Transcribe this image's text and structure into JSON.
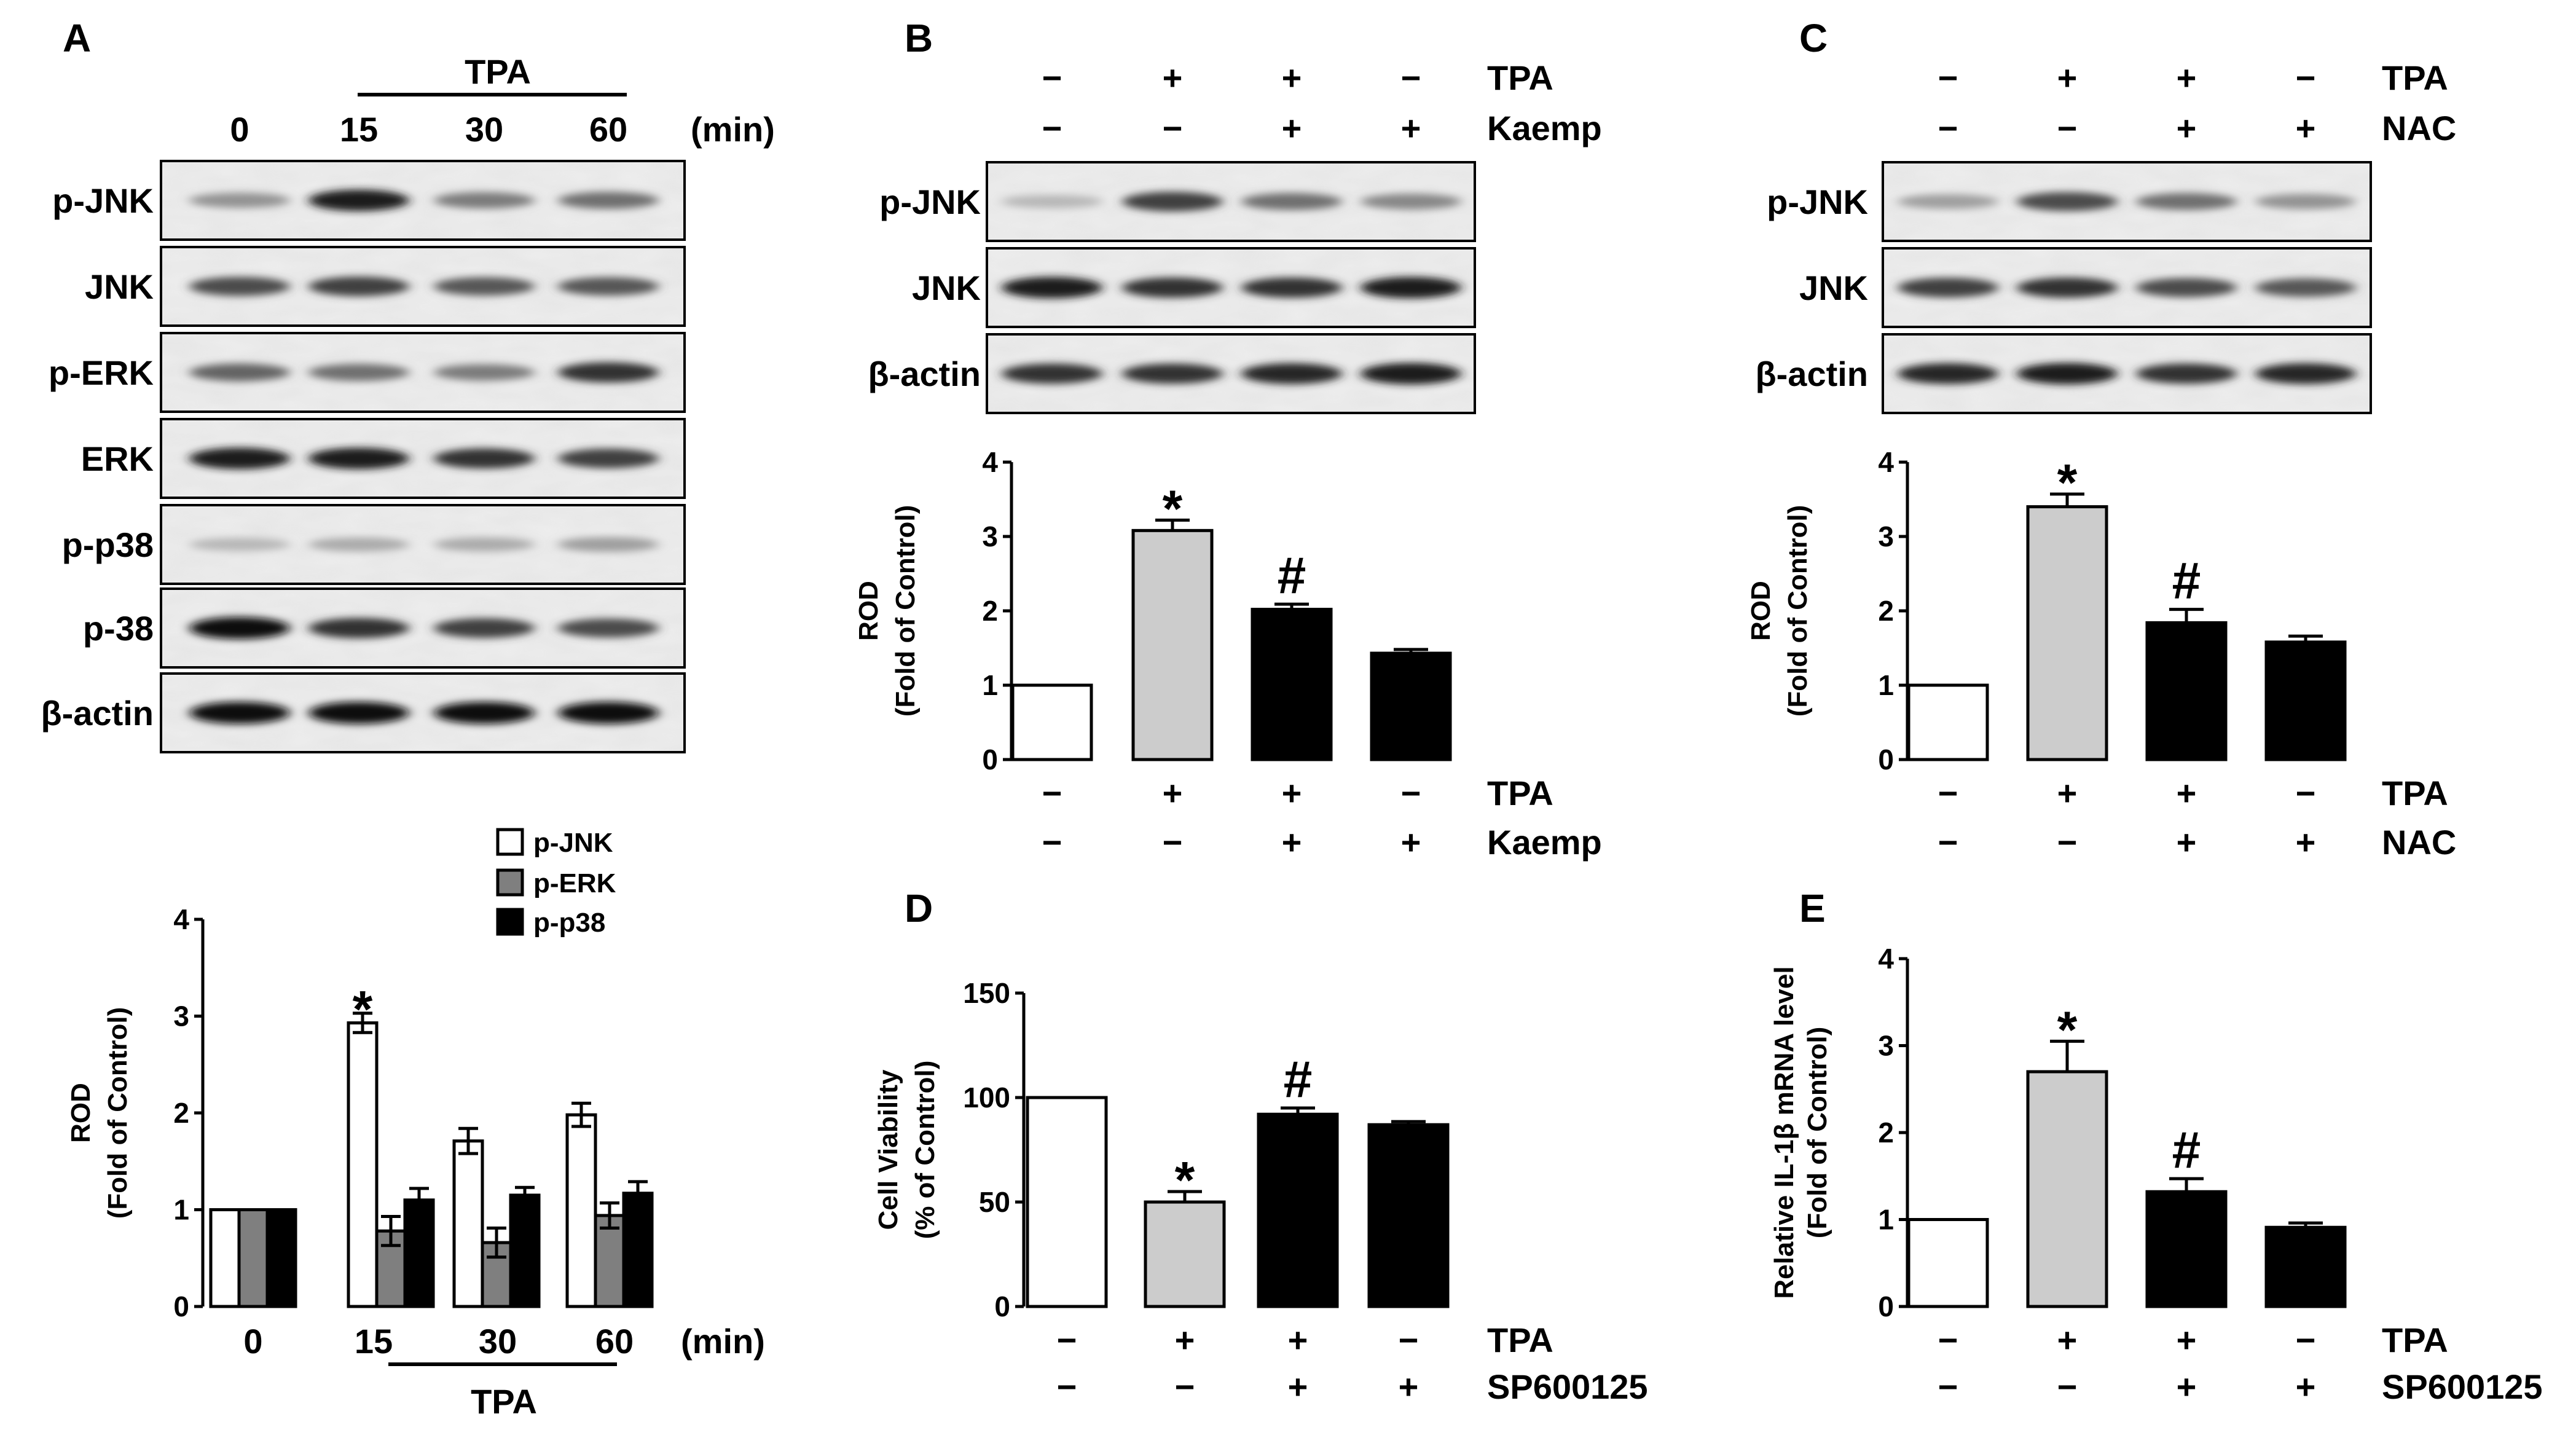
{
  "panel_labels": [
    "A",
    "B",
    "C",
    "D",
    "E"
  ],
  "colors": {
    "white": "#ffffff",
    "gray_light": "#cccccc",
    "gray_dark": "#7f7f7f",
    "black": "#000000"
  },
  "blots": {
    "A": {
      "group": "TPA",
      "times": [
        "0",
        "15",
        "30",
        "60"
      ],
      "unit": "(min)",
      "rows": [
        "p-JNK",
        "JNK",
        "p-ERK",
        "ERK",
        "p-p38",
        "p-38",
        "β-actin"
      ]
    },
    "B": {
      "rows": [
        "p-JNK",
        "JNK",
        "β-actin"
      ],
      "treatments": [
        {
          "name": "TPA",
          "signs": [
            "−",
            "+",
            "+",
            "−"
          ]
        },
        {
          "name": "Kaemp",
          "signs": [
            "−",
            "−",
            "+",
            "+"
          ]
        }
      ]
    },
    "C": {
      "rows": [
        "p-JNK",
        "JNK",
        "β-actin"
      ],
      "treatments": [
        {
          "name": "TPA",
          "signs": [
            "−",
            "+",
            "+",
            "−"
          ]
        },
        {
          "name": "NAC",
          "signs": [
            "−",
            "−",
            "+",
            "+"
          ]
        }
      ]
    }
  },
  "chart_data": [
    {
      "panel": "A",
      "type": "bar",
      "categories": [
        "0",
        "15",
        "30",
        "60"
      ],
      "series": [
        {
          "name": "p-JNK",
          "color": "#ffffff",
          "values": [
            1.0,
            2.93,
            1.71,
            1.98
          ],
          "errors": [
            0,
            0.1,
            0.13,
            0.12
          ]
        },
        {
          "name": "p-ERK",
          "color": "#7f7f7f",
          "values": [
            1.0,
            0.78,
            0.66,
            0.94
          ],
          "errors": [
            0,
            0.15,
            0.15,
            0.13
          ]
        },
        {
          "name": "p-p38",
          "color": "#000000",
          "values": [
            1.0,
            1.1,
            1.15,
            1.17
          ],
          "errors": [
            0,
            0.12,
            0.08,
            0.12
          ]
        }
      ],
      "significance": [
        {
          "category": "15",
          "series": "p-JNK",
          "mark": "*"
        }
      ],
      "ylabel": "ROD",
      "ylabel2": "(Fold of Control)",
      "ylim": [
        0,
        4
      ],
      "yticks": [
        "0",
        "1",
        "2",
        "3",
        "4"
      ],
      "xunit": "(min)",
      "group_label": "TPA",
      "legend": "top-right"
    },
    {
      "panel": "B",
      "type": "bar",
      "values": [
        1.0,
        3.08,
        2.02,
        1.43
      ],
      "errors": [
        0,
        0.14,
        0.07,
        0.05
      ],
      "colors": [
        "#ffffff",
        "#cccccc",
        "#000000",
        "#000000"
      ],
      "marks": [
        "",
        "*",
        "#",
        ""
      ],
      "ylabel": "ROD",
      "ylabel2": "(Fold of Control)",
      "ylim": [
        0,
        4
      ],
      "yticks": [
        "0",
        "1",
        "2",
        "3",
        "4"
      ],
      "treatments": [
        {
          "name": "TPA",
          "signs": [
            "−",
            "+",
            "+",
            "−"
          ]
        },
        {
          "name": "Kaemp",
          "signs": [
            "−",
            "−",
            "+",
            "+"
          ]
        }
      ]
    },
    {
      "panel": "C",
      "type": "bar",
      "values": [
        1.0,
        3.4,
        1.84,
        1.58
      ],
      "errors": [
        0,
        0.17,
        0.18,
        0.08
      ],
      "colors": [
        "#ffffff",
        "#cccccc",
        "#000000",
        "#000000"
      ],
      "marks": [
        "",
        "*",
        "#",
        ""
      ],
      "ylabel": "ROD",
      "ylabel2": "(Fold of Control)",
      "ylim": [
        0,
        4
      ],
      "yticks": [
        "0",
        "1",
        "2",
        "3",
        "4"
      ],
      "treatments": [
        {
          "name": "TPA",
          "signs": [
            "−",
            "+",
            "+",
            "−"
          ]
        },
        {
          "name": "NAC",
          "signs": [
            "−",
            "−",
            "+",
            "+"
          ]
        }
      ]
    },
    {
      "panel": "D",
      "type": "bar",
      "values": [
        100,
        50,
        92,
        87
      ],
      "errors": [
        0,
        5,
        3,
        1.5
      ],
      "colors": [
        "#ffffff",
        "#cccccc",
        "#000000",
        "#000000"
      ],
      "marks": [
        "",
        "*",
        "#",
        ""
      ],
      "ylabel": "Cell Viability",
      "ylabel2": "(% of Control)",
      "ylim": [
        0,
        150
      ],
      "yticks": [
        "0",
        "50",
        "100",
        "150"
      ],
      "treatments": [
        {
          "name": "TPA",
          "signs": [
            "−",
            "+",
            "+",
            "−"
          ]
        },
        {
          "name": "SP600125",
          "signs": [
            "−",
            "−",
            "+",
            "+"
          ]
        }
      ]
    },
    {
      "panel": "E",
      "type": "bar",
      "values": [
        1.0,
        2.7,
        1.32,
        0.91
      ],
      "errors": [
        0,
        0.35,
        0.15,
        0.05
      ],
      "colors": [
        "#ffffff",
        "#cccccc",
        "#000000",
        "#000000"
      ],
      "marks": [
        "",
        "*",
        "#",
        ""
      ],
      "ylabel": "Relative IL-1β mRNA level",
      "ylabel2": "(Fold of Control)",
      "ylim": [
        0,
        4
      ],
      "yticks": [
        "0",
        "1",
        "2",
        "3",
        "4"
      ],
      "treatments": [
        {
          "name": "TPA",
          "signs": [
            "−",
            "+",
            "+",
            "−"
          ]
        },
        {
          "name": "SP600125",
          "signs": [
            "−",
            "−",
            "+",
            "+"
          ]
        }
      ]
    }
  ]
}
